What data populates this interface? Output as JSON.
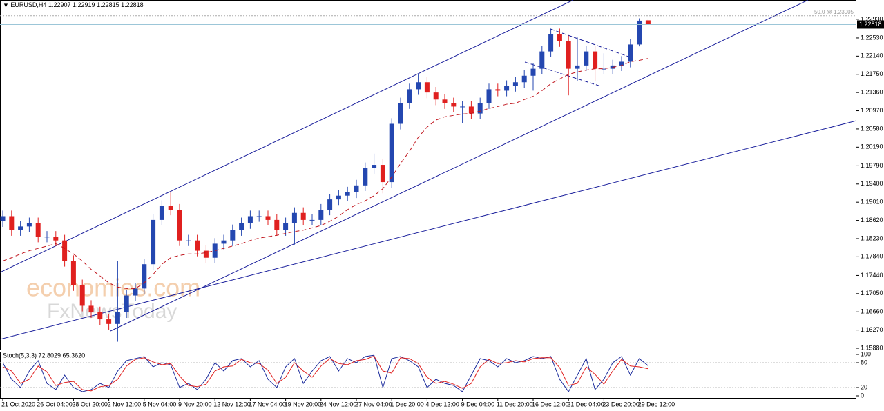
{
  "chart_data": [
    {
      "type": "candlestick",
      "title": "EURUSD,H4",
      "up_color": "#2447b0",
      "down_color": "#e0201f",
      "categories": [
        "21 Oct 2020",
        null,
        null,
        null,
        "26 Oct 04:00",
        null,
        null,
        null,
        "28 Oct 20:00",
        null,
        null,
        null,
        "2 Nov 12:00",
        null,
        null,
        null,
        "5 Nov 04:00",
        null,
        null,
        null,
        "9 Nov 20:00",
        null,
        null,
        null,
        "12 Nov 12:00",
        null,
        null,
        null,
        "17 Nov 04:00",
        null,
        null,
        null,
        "19 Nov 20:00",
        null,
        null,
        null,
        "24 Nov 12:00",
        null,
        null,
        null,
        "27 Nov 04:00",
        null,
        null,
        null,
        "1 Dec 20:00",
        null,
        null,
        null,
        "4 Dec 12:00",
        null,
        null,
        null,
        "9 Dec 04:00",
        null,
        null,
        null,
        "11 Dec 20:00",
        null,
        null,
        null,
        "16 Dec 12:00",
        null,
        null,
        null,
        "21 Dec 04:00",
        null,
        null,
        null,
        "23 Dec 20:00",
        null,
        null,
        null,
        "29 Dec 12:00",
        null
      ],
      "open": [
        1.186,
        1.1871,
        1.1841,
        1.1849,
        1.1856,
        1.1827,
        1.1827,
        1.1819,
        1.1775,
        1.1723,
        1.1679,
        1.1665,
        1.165,
        1.164,
        1.1665,
        1.1701,
        1.1716,
        1.1768,
        1.1863,
        1.1893,
        1.1885,
        1.1819,
        1.1819,
        1.1797,
        1.1782,
        1.1812,
        1.1819,
        1.1841,
        1.1856,
        1.1871,
        1.1871,
        1.1863,
        1.1841,
        1.1856,
        1.1878,
        1.1863,
        1.1863,
        1.1885,
        1.1907,
        1.1915,
        1.1922,
        1.1937,
        1.1974,
        1.1981,
        1.1944,
        1.2069,
        1.2113,
        1.2143,
        1.2158,
        1.2136,
        1.2121,
        1.2113,
        1.2106,
        1.2106,
        1.2091,
        1.2113,
        1.2143,
        1.214,
        1.215,
        1.2158,
        1.2172,
        1.2187,
        1.2224,
        1.2261,
        1.2246,
        1.2187,
        1.2194,
        1.2224,
        1.2187,
        1.2187,
        1.2194,
        1.2202,
        1.2239,
        1.22907
      ],
      "high": [
        1.1883,
        1.1883,
        1.1861,
        1.1868,
        1.1868,
        1.1839,
        1.1839,
        1.1831,
        1.1787,
        1.1735,
        1.1691,
        1.1677,
        1.1662,
        1.1775,
        1.1713,
        1.1728,
        1.178,
        1.1875,
        1.1905,
        1.1922,
        1.1897,
        1.1831,
        1.1831,
        1.1809,
        1.1824,
        1.1831,
        1.1853,
        1.1868,
        1.1883,
        1.1883,
        1.1883,
        1.1875,
        1.1868,
        1.189,
        1.189,
        1.1875,
        1.1897,
        1.1919,
        1.1927,
        1.1934,
        1.1949,
        1.1986,
        1.2005,
        1.1993,
        1.2081,
        1.2125,
        1.2155,
        1.2175,
        1.217,
        1.2148,
        1.2133,
        1.2125,
        1.2118,
        1.2118,
        1.2125,
        1.2155,
        1.2155,
        1.2162,
        1.217,
        1.2184,
        1.2199,
        1.2236,
        1.2273,
        1.2273,
        1.2258,
        1.2254,
        1.2236,
        1.2236,
        1.222,
        1.2206,
        1.2214,
        1.2251,
        1.2295,
        1.22919
      ],
      "low": [
        1.1848,
        1.1829,
        1.1829,
        1.1837,
        1.1815,
        1.1815,
        1.1807,
        1.1763,
        1.1711,
        1.1667,
        1.1653,
        1.1638,
        1.1628,
        1.1602,
        1.1653,
        1.1689,
        1.1704,
        1.1756,
        1.1851,
        1.1873,
        1.1807,
        1.1807,
        1.1785,
        1.177,
        1.177,
        1.18,
        1.1807,
        1.1829,
        1.1844,
        1.1859,
        1.1851,
        1.1829,
        1.1829,
        1.181,
        1.1851,
        1.1851,
        1.1851,
        1.1873,
        1.1895,
        1.1903,
        1.191,
        1.1925,
        1.1962,
        1.192,
        1.1932,
        1.2057,
        1.2101,
        1.2131,
        1.2124,
        1.2109,
        1.2101,
        1.2094,
        1.207,
        1.2079,
        1.2079,
        1.2101,
        1.2128,
        1.2128,
        1.2138,
        1.2146,
        1.214,
        1.2175,
        1.2212,
        1.2234,
        1.213,
        1.216,
        1.2182,
        1.216,
        1.2175,
        1.2175,
        1.2182,
        1.219,
        1.2235,
        1.22815
      ],
      "close": [
        1.1871,
        1.1841,
        1.1849,
        1.1856,
        1.1827,
        1.1827,
        1.1819,
        1.1775,
        1.1723,
        1.1679,
        1.1665,
        1.165,
        1.164,
        1.1665,
        1.1701,
        1.1716,
        1.1768,
        1.1863,
        1.1893,
        1.1885,
        1.1819,
        1.1819,
        1.1797,
        1.1782,
        1.1812,
        1.1819,
        1.1841,
        1.1856,
        1.1871,
        1.1871,
        1.1863,
        1.1841,
        1.1856,
        1.1878,
        1.1863,
        1.1863,
        1.1885,
        1.1907,
        1.1915,
        1.1922,
        1.1937,
        1.1974,
        1.1981,
        1.1944,
        1.2069,
        1.2113,
        1.2143,
        1.2158,
        1.2136,
        1.2121,
        1.2113,
        1.2106,
        1.2106,
        1.2091,
        1.2113,
        1.2143,
        1.214,
        1.215,
        1.2158,
        1.2172,
        1.2187,
        1.2224,
        1.2261,
        1.2246,
        1.2187,
        1.2194,
        1.2224,
        1.2187,
        1.2187,
        1.2194,
        1.2202,
        1.2239,
        1.229,
        1.22818
      ],
      "moving_average": {
        "color": "#c0141c",
        "values": [
          1.1775,
          1.1782,
          1.179,
          1.1797,
          1.1802,
          1.1807,
          1.1812,
          1.1802,
          1.179,
          1.1775,
          1.1757,
          1.1743,
          1.1728,
          1.1719,
          1.1716,
          1.1716,
          1.1728,
          1.1746,
          1.1768,
          1.1782,
          1.1787,
          1.179,
          1.179,
          1.1793,
          1.1797,
          1.1802,
          1.1807,
          1.1812,
          1.1819,
          1.1824,
          1.1827,
          1.183,
          1.1834,
          1.1838,
          1.1841,
          1.1846,
          1.1851,
          1.186,
          1.1871,
          1.1885,
          1.1896,
          1.1904,
          1.1915,
          1.193,
          1.1955,
          1.1984,
          1.201,
          1.204,
          1.2062,
          1.2077,
          1.2084,
          1.2087,
          1.209,
          1.2091,
          1.2096,
          1.2102,
          1.2106,
          1.2111,
          1.2113,
          1.2121,
          1.2128,
          1.214,
          1.2155,
          1.2165,
          1.2175,
          1.218,
          1.2184,
          1.2187,
          1.2187,
          1.219,
          1.2194,
          1.2202,
          1.2205,
          1.2209
        ]
      },
      "fib_level": {
        "value": 1.23005,
        "label": "50.0 @ 1.23005"
      },
      "watermark": [
        "economies.com",
        "FxNewsToday"
      ],
      "ylim": [
        1.15836,
        1.23342
      ],
      "yticks": [
        {
          "value": 1.2293,
          "label": "1.22930"
        },
        {
          "value": 1.2253,
          "label": "1.22530"
        },
        {
          "value": 1.2214,
          "label": "1.22140"
        },
        {
          "value": 1.2175,
          "label": "1.21750"
        },
        {
          "value": 1.2136,
          "label": "1.21360"
        },
        {
          "value": 1.2097,
          "label": "1.20970"
        },
        {
          "value": 1.2058,
          "label": "1.20580"
        },
        {
          "value": 1.2019,
          "label": "1.20190"
        },
        {
          "value": 1.1979,
          "label": "1.19790"
        },
        {
          "value": 1.194,
          "label": "1.19400"
        },
        {
          "value": 1.1901,
          "label": "1.19010"
        },
        {
          "value": 1.1862,
          "label": "1.18620"
        },
        {
          "value": 1.1823,
          "label": "1.18230"
        },
        {
          "value": 1.1784,
          "label": "1.17840"
        },
        {
          "value": 1.1744,
          "label": "1.17440"
        },
        {
          "value": 1.1705,
          "label": "1.17050"
        },
        {
          "value": 1.1666,
          "label": "1.16660"
        },
        {
          "value": 1.1627,
          "label": "1.16270"
        },
        {
          "value": 1.1588,
          "label": "1.15880"
        }
      ]
    },
    {
      "type": "line",
      "title": "Stoch(5,3,3) 72.8029 65.3620",
      "series": [
        {
          "color": "#1a2a9c",
          "values": [
            80,
            40,
            20,
            60,
            85,
            30,
            15,
            50,
            20,
            10,
            15,
            30,
            20,
            60,
            85,
            90,
            95,
            70,
            80,
            75,
            20,
            30,
            15,
            40,
            80,
            60,
            85,
            90,
            70,
            85,
            40,
            20,
            70,
            90,
            30,
            60,
            85,
            95,
            60,
            90,
            80,
            95,
            98,
            20,
            90,
            95,
            85,
            70,
            20,
            40,
            30,
            25,
            10,
            50,
            90,
            85,
            70,
            90,
            80,
            85,
            95,
            90,
            95,
            40,
            10,
            50,
            90,
            15,
            40,
            80,
            95,
            50,
            90,
            72.8029
          ]
        },
        {
          "color": "#e0201f",
          "values": [
            70,
            60,
            30,
            40,
            72,
            58,
            25,
            32,
            35,
            15,
            12,
            22,
            25,
            40,
            72,
            88,
            92,
            82,
            75,
            78,
            48,
            25,
            22,
            28,
            60,
            70,
            72,
            88,
            80,
            78,
            62,
            30,
            45,
            80,
            60,
            45,
            72,
            90,
            78,
            75,
            85,
            88,
            96,
            60,
            55,
            92,
            90,
            78,
            45,
            30,
            35,
            28,
            18,
            30,
            70,
            88,
            78,
            80,
            85,
            82,
            90,
            92,
            92,
            68,
            25,
            30,
            70,
            52,
            28,
            60,
            88,
            72,
            70,
            65.362
          ]
        }
      ],
      "ylim": [
        0,
        100
      ],
      "yticks": [
        100,
        80,
        20,
        0
      ]
    }
  ]
}
